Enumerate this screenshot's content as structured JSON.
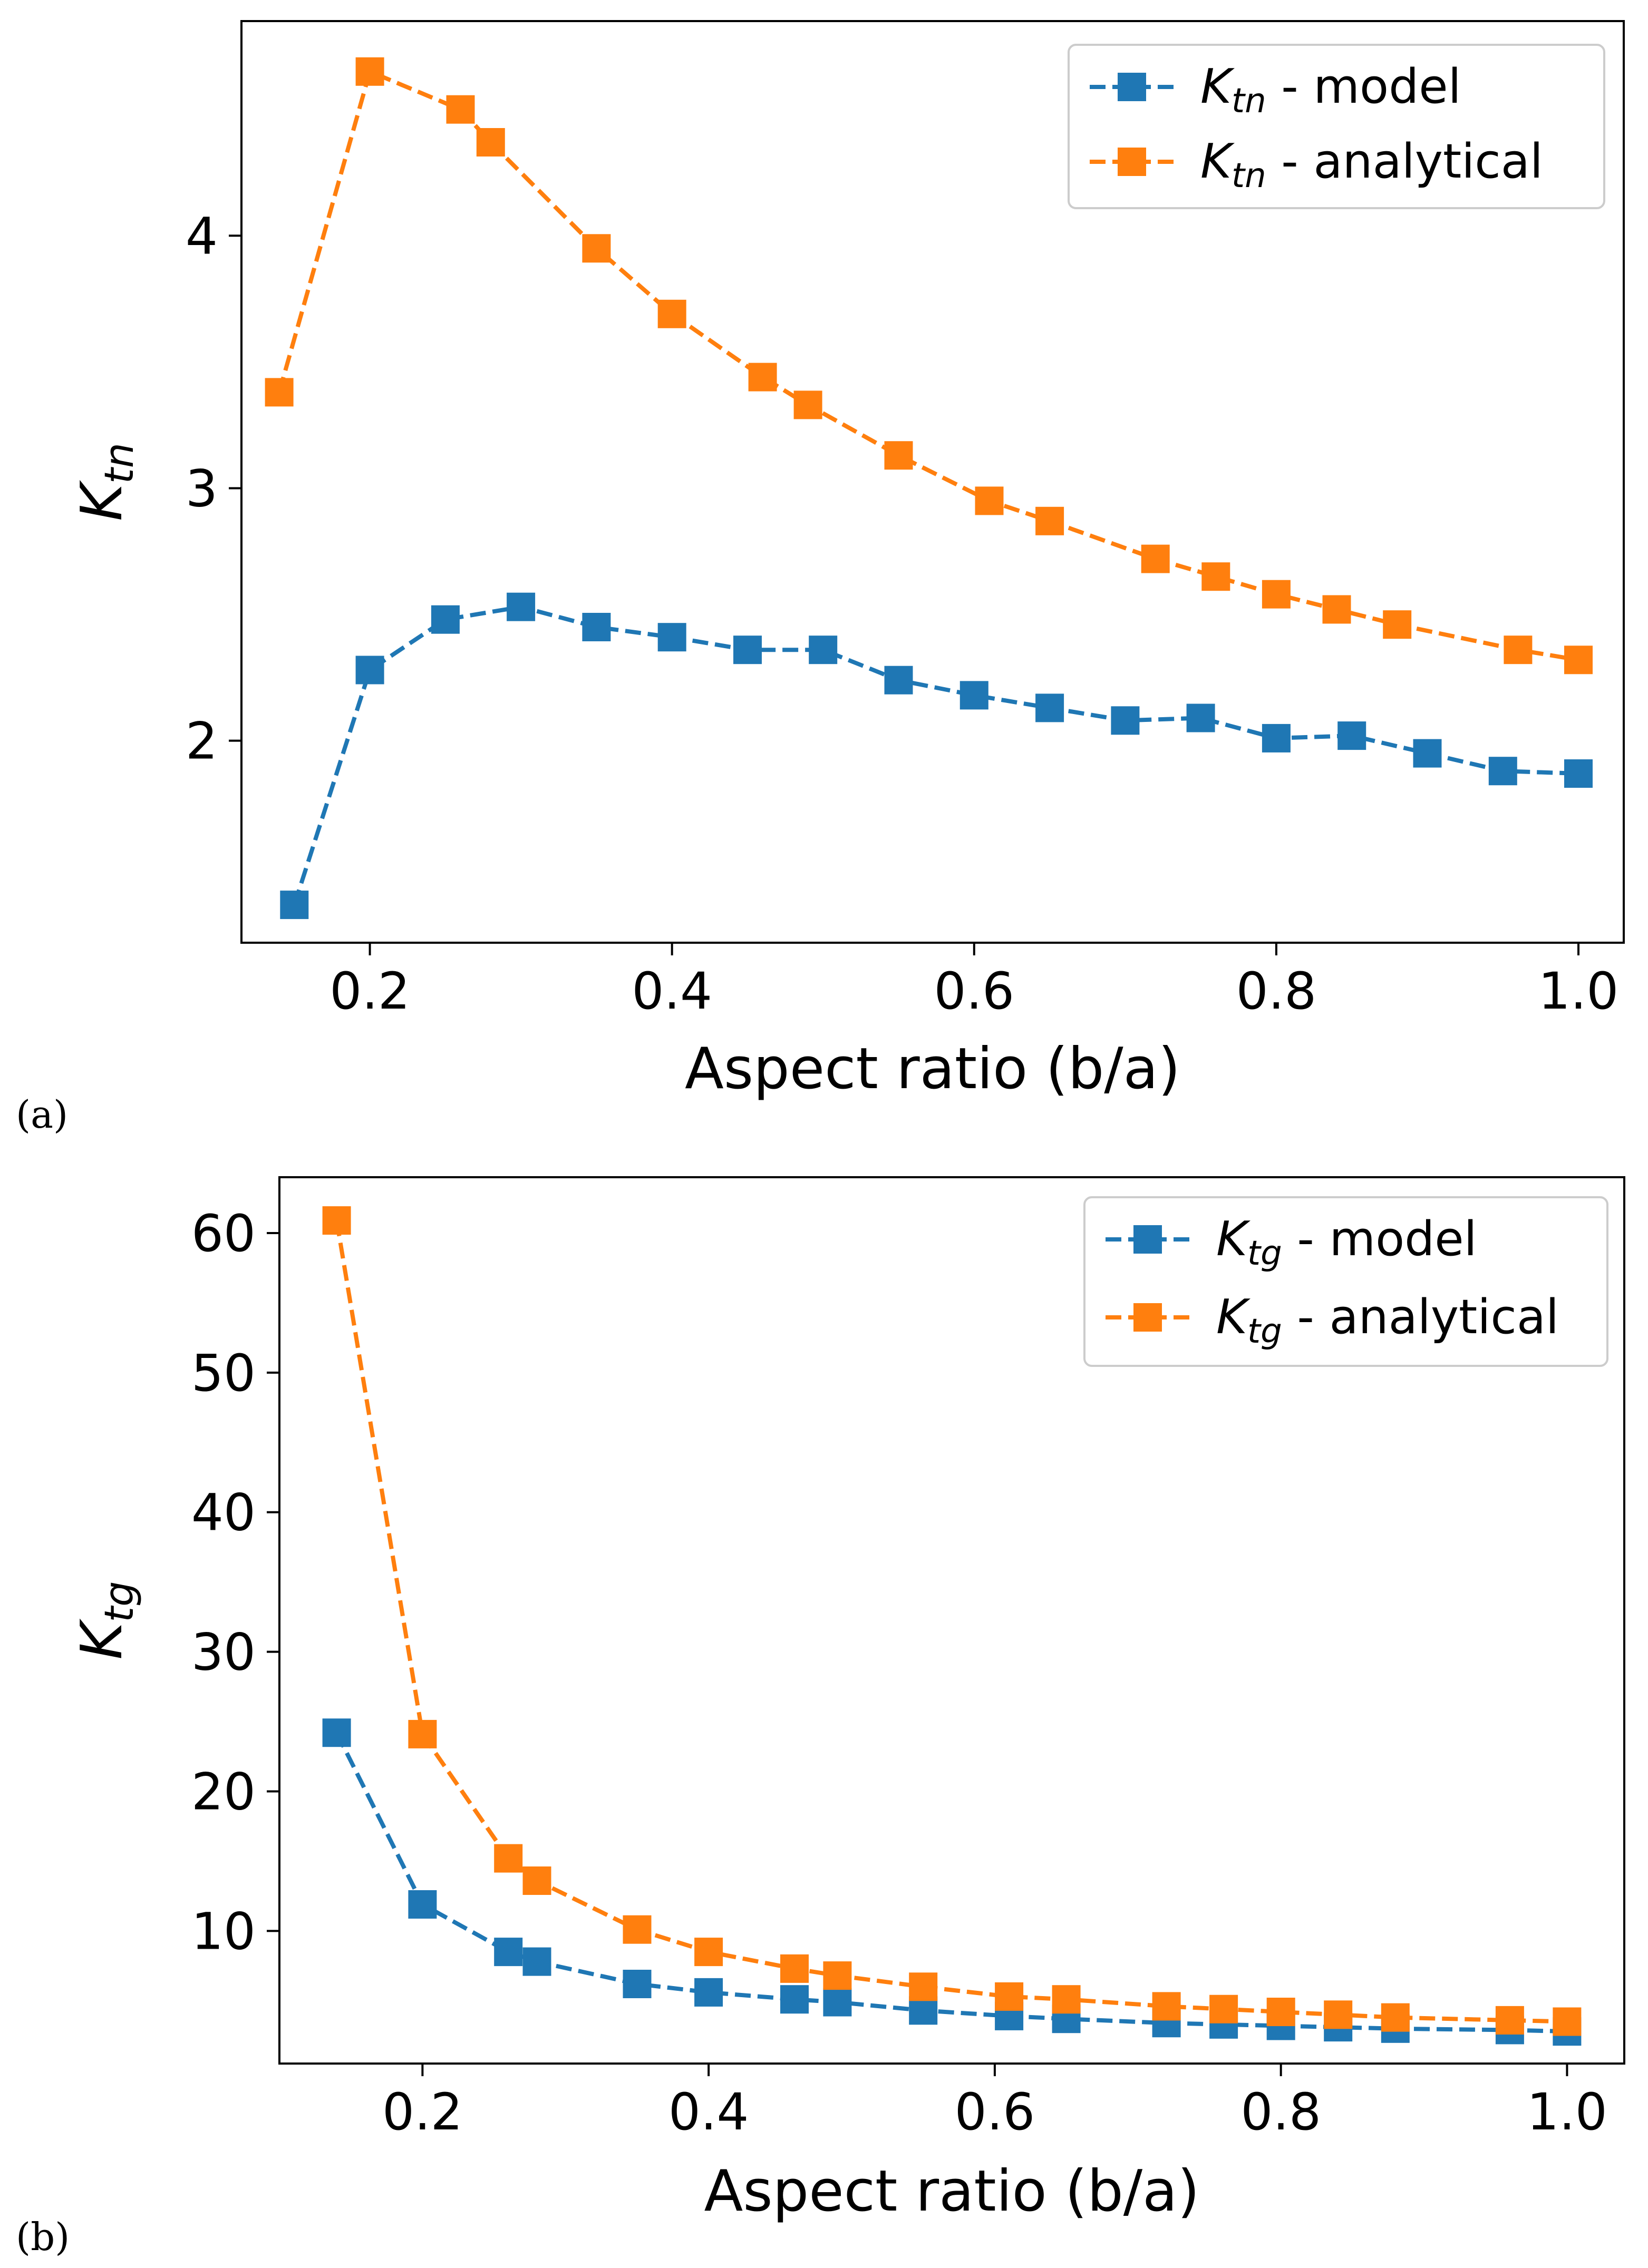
{
  "chart_data": [
    {
      "type": "line",
      "panel_label": "(a)",
      "xlabel": "Aspect ratio (b/a)",
      "ylabel": {
        "main": "K",
        "sub": "tn"
      },
      "xlim": [
        0.115,
        1.03
      ],
      "ylim": [
        1.2,
        4.85
      ],
      "xticks": [
        0.2,
        0.4,
        0.6,
        0.8,
        1.0
      ],
      "xtick_labels": [
        "0.2",
        "0.4",
        "0.6",
        "0.8",
        "1.0"
      ],
      "yticks": [
        2,
        3,
        4
      ],
      "ytick_labels": [
        "2",
        "3",
        "4"
      ],
      "legend_position": "top-right",
      "series": [
        {
          "name": "model",
          "legend": {
            "main": "K",
            "sub": "tn",
            "rest": " - model"
          },
          "color": "#1f77b4",
          "x": [
            0.15,
            0.2,
            0.25,
            0.3,
            0.35,
            0.4,
            0.45,
            0.5,
            0.55,
            0.6,
            0.65,
            0.7,
            0.75,
            0.8,
            0.85,
            0.9,
            0.95,
            1.0
          ],
          "y": [
            1.35,
            2.28,
            2.48,
            2.53,
            2.45,
            2.41,
            2.36,
            2.36,
            2.24,
            2.18,
            2.13,
            2.08,
            2.09,
            2.01,
            2.02,
            1.95,
            1.88,
            1.87
          ]
        },
        {
          "name": "analytical",
          "legend": {
            "main": "K",
            "sub": "tn",
            "rest": " - analytical"
          },
          "color": "#ff7f0e",
          "x": [
            0.14,
            0.2,
            0.26,
            0.28,
            0.35,
            0.4,
            0.46,
            0.49,
            0.55,
            0.61,
            0.65,
            0.72,
            0.76,
            0.8,
            0.84,
            0.88,
            0.96,
            1.0
          ],
          "y": [
            3.38,
            4.65,
            4.5,
            4.37,
            3.95,
            3.69,
            3.44,
            3.33,
            3.13,
            2.95,
            2.87,
            2.72,
            2.65,
            2.58,
            2.52,
            2.46,
            2.36,
            2.32
          ]
        }
      ]
    },
    {
      "type": "line",
      "panel_label": "(b)",
      "xlabel": "Aspect ratio (b/a)",
      "ylabel": {
        "main": "K",
        "sub": "tg"
      },
      "xlim": [
        0.1,
        1.04
      ],
      "ylim": [
        0.5,
        64.0
      ],
      "xticks": [
        0.2,
        0.4,
        0.6,
        0.8,
        1.0
      ],
      "xtick_labels": [
        "0.2",
        "0.4",
        "0.6",
        "0.8",
        "1.0"
      ],
      "yticks": [
        10,
        20,
        30,
        40,
        50,
        60
      ],
      "ytick_labels": [
        "10",
        "20",
        "30",
        "40",
        "50",
        "60"
      ],
      "legend_position": "top-right",
      "series": [
        {
          "name": "model",
          "legend": {
            "main": "K",
            "sub": "tg",
            "rest": " - model"
          },
          "color": "#1f77b4",
          "x": [
            0.14,
            0.2,
            0.26,
            0.28,
            0.35,
            0.4,
            0.46,
            0.49,
            0.55,
            0.61,
            0.65,
            0.72,
            0.76,
            0.8,
            0.84,
            0.88,
            0.96,
            1.0
          ],
          "y": [
            24.2,
            11.9,
            8.5,
            7.8,
            6.2,
            5.6,
            5.1,
            4.9,
            4.3,
            3.9,
            3.7,
            3.4,
            3.3,
            3.2,
            3.1,
            3.0,
            2.9,
            2.8
          ]
        },
        {
          "name": "analytical",
          "legend": {
            "main": "K",
            "sub": "tg",
            "rest": " - analytical"
          },
          "color": "#ff7f0e",
          "x": [
            0.14,
            0.2,
            0.26,
            0.28,
            0.35,
            0.4,
            0.46,
            0.49,
            0.55,
            0.61,
            0.65,
            0.72,
            0.76,
            0.8,
            0.84,
            0.88,
            0.96,
            1.0
          ],
          "y": [
            60.9,
            24.1,
            15.2,
            13.6,
            10.1,
            8.5,
            7.3,
            6.8,
            6.0,
            5.3,
            5.1,
            4.6,
            4.4,
            4.2,
            4.0,
            3.8,
            3.6,
            3.5
          ]
        }
      ]
    }
  ]
}
